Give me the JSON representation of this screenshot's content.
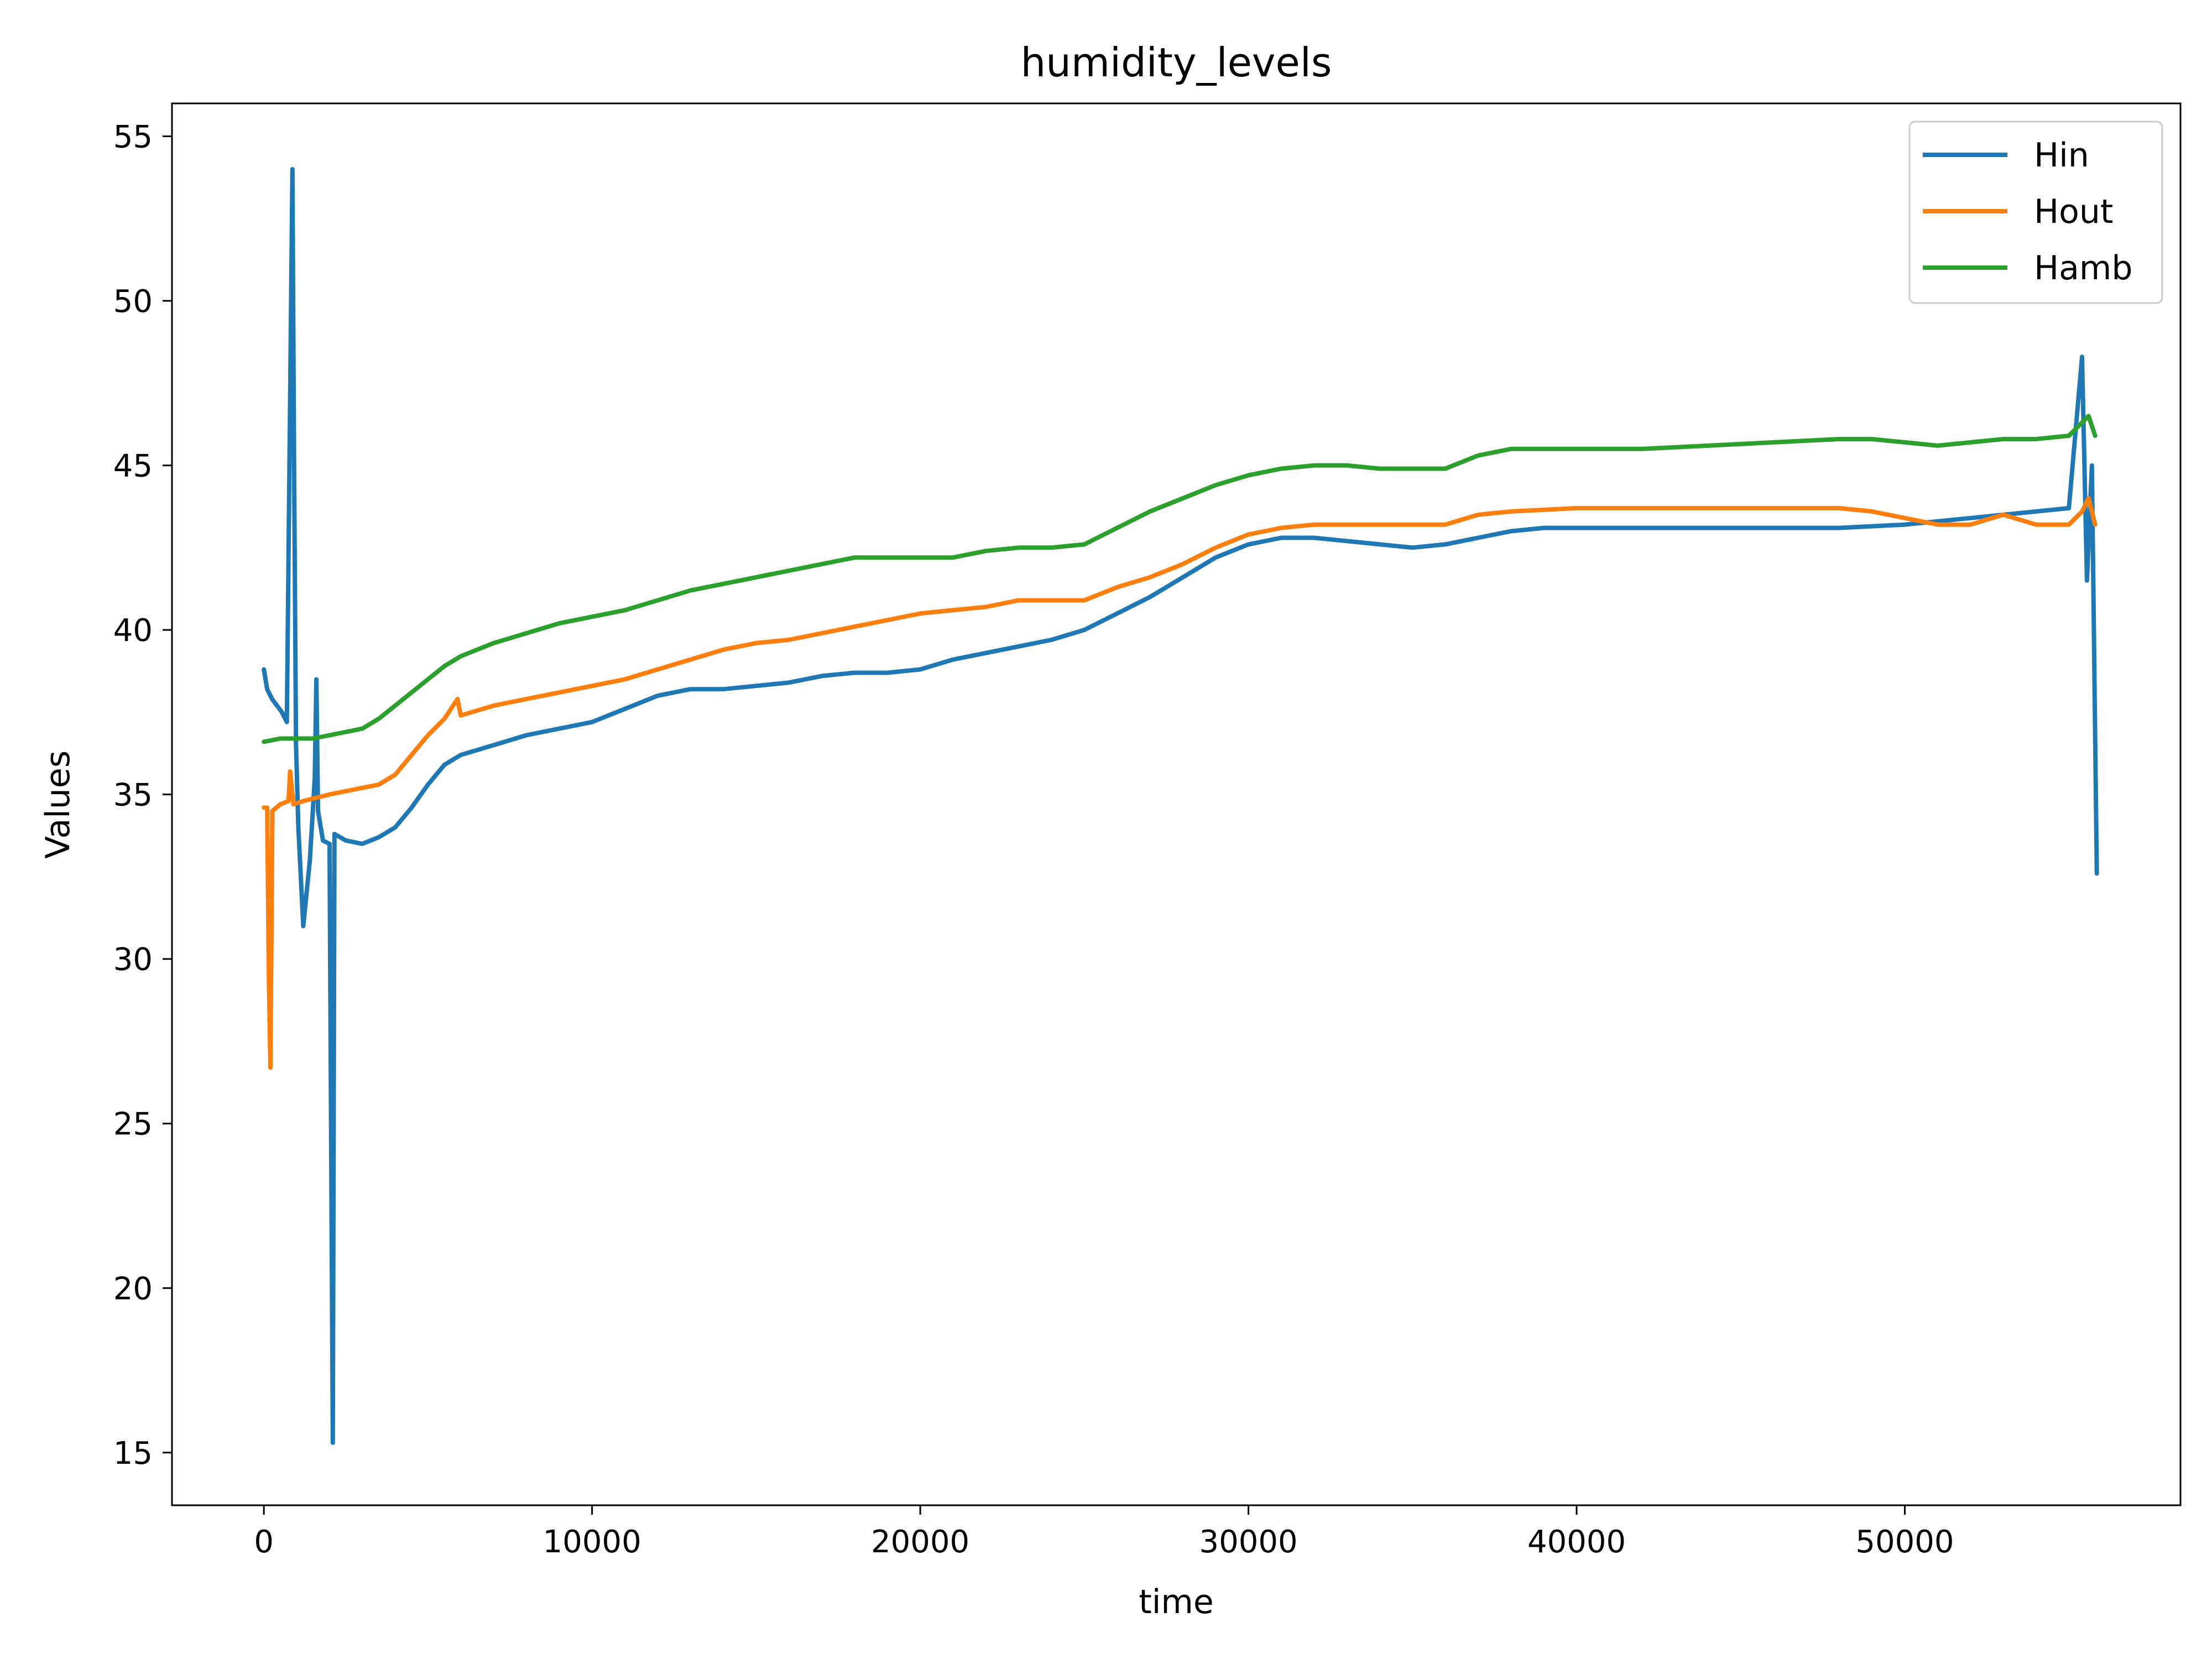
{
  "chart_data": {
    "type": "line",
    "title": "humidity_levels",
    "xlabel": "time",
    "ylabel": "Values",
    "xlim": [
      -2800,
      58400
    ],
    "ylim": [
      13.4,
      56.0
    ],
    "xticks": [
      0,
      10000,
      20000,
      30000,
      40000,
      50000
    ],
    "yticks": [
      15,
      20,
      25,
      30,
      35,
      40,
      45,
      50,
      55
    ],
    "grid": false,
    "legend": {
      "position": "top-right",
      "entries": [
        "Hin",
        "Hout",
        "Hamb"
      ]
    },
    "series": [
      {
        "name": "Hin",
        "color": "#1f77b4",
        "points": [
          [
            0,
            38.8
          ],
          [
            100,
            38.2
          ],
          [
            250,
            37.9
          ],
          [
            400,
            37.7
          ],
          [
            550,
            37.5
          ],
          [
            700,
            37.2
          ],
          [
            800,
            47.0
          ],
          [
            870,
            54.0
          ],
          [
            920,
            45.0
          ],
          [
            980,
            36.5
          ],
          [
            1050,
            34.0
          ],
          [
            1200,
            31.0
          ],
          [
            1400,
            33.0
          ],
          [
            1550,
            35.5
          ],
          [
            1600,
            38.5
          ],
          [
            1650,
            34.5
          ],
          [
            1800,
            33.6
          ],
          [
            2000,
            33.5
          ],
          [
            2100,
            15.3
          ],
          [
            2150,
            33.8
          ],
          [
            2500,
            33.6
          ],
          [
            3000,
            33.5
          ],
          [
            3500,
            33.7
          ],
          [
            4000,
            34.0
          ],
          [
            4500,
            34.6
          ],
          [
            5000,
            35.3
          ],
          [
            5500,
            35.9
          ],
          [
            6000,
            36.2
          ],
          [
            7000,
            36.5
          ],
          [
            8000,
            36.8
          ],
          [
            9000,
            37.0
          ],
          [
            10000,
            37.2
          ],
          [
            11000,
            37.6
          ],
          [
            12000,
            38.0
          ],
          [
            13000,
            38.2
          ],
          [
            14000,
            38.2
          ],
          [
            15000,
            38.3
          ],
          [
            16000,
            38.4
          ],
          [
            17000,
            38.6
          ],
          [
            18000,
            38.7
          ],
          [
            19000,
            38.7
          ],
          [
            20000,
            38.8
          ],
          [
            21000,
            39.1
          ],
          [
            22000,
            39.3
          ],
          [
            23000,
            39.5
          ],
          [
            24000,
            39.7
          ],
          [
            25000,
            40.0
          ],
          [
            26000,
            40.5
          ],
          [
            27000,
            41.0
          ],
          [
            28000,
            41.6
          ],
          [
            29000,
            42.2
          ],
          [
            30000,
            42.6
          ],
          [
            31000,
            42.8
          ],
          [
            32000,
            42.8
          ],
          [
            33000,
            42.7
          ],
          [
            34000,
            42.6
          ],
          [
            35000,
            42.5
          ],
          [
            36000,
            42.6
          ],
          [
            37000,
            42.8
          ],
          [
            38000,
            43.0
          ],
          [
            39000,
            43.1
          ],
          [
            40000,
            43.1
          ],
          [
            42000,
            43.1
          ],
          [
            44000,
            43.1
          ],
          [
            46000,
            43.1
          ],
          [
            48000,
            43.1
          ],
          [
            50000,
            43.2
          ],
          [
            51000,
            43.3
          ],
          [
            52000,
            43.4
          ],
          [
            53000,
            43.5
          ],
          [
            54000,
            43.6
          ],
          [
            55000,
            43.7
          ],
          [
            55400,
            48.3
          ],
          [
            55550,
            41.5
          ],
          [
            55700,
            45.0
          ],
          [
            55850,
            32.6
          ]
        ]
      },
      {
        "name": "Hout",
        "color": "#ff7f0e",
        "points": [
          [
            0,
            34.6
          ],
          [
            100,
            34.6
          ],
          [
            150,
            29.5
          ],
          [
            200,
            26.7
          ],
          [
            260,
            34.5
          ],
          [
            500,
            34.7
          ],
          [
            750,
            34.8
          ],
          [
            800,
            35.7
          ],
          [
            900,
            34.7
          ],
          [
            1200,
            34.8
          ],
          [
            1600,
            34.9
          ],
          [
            2000,
            35.0
          ],
          [
            2500,
            35.1
          ],
          [
            3000,
            35.2
          ],
          [
            3500,
            35.3
          ],
          [
            4000,
            35.6
          ],
          [
            4500,
            36.2
          ],
          [
            5000,
            36.8
          ],
          [
            5500,
            37.3
          ],
          [
            5900,
            37.9
          ],
          [
            6000,
            37.4
          ],
          [
            7000,
            37.7
          ],
          [
            8000,
            37.9
          ],
          [
            9000,
            38.1
          ],
          [
            10000,
            38.3
          ],
          [
            11000,
            38.5
          ],
          [
            12000,
            38.8
          ],
          [
            13000,
            39.1
          ],
          [
            14000,
            39.4
          ],
          [
            15000,
            39.6
          ],
          [
            16000,
            39.7
          ],
          [
            17000,
            39.9
          ],
          [
            18000,
            40.1
          ],
          [
            19000,
            40.3
          ],
          [
            20000,
            40.5
          ],
          [
            21000,
            40.6
          ],
          [
            22000,
            40.7
          ],
          [
            23000,
            40.9
          ],
          [
            24000,
            40.9
          ],
          [
            25000,
            40.9
          ],
          [
            26000,
            41.3
          ],
          [
            27000,
            41.6
          ],
          [
            28000,
            42.0
          ],
          [
            29000,
            42.5
          ],
          [
            30000,
            42.9
          ],
          [
            31000,
            43.1
          ],
          [
            32000,
            43.2
          ],
          [
            33000,
            43.2
          ],
          [
            34000,
            43.2
          ],
          [
            35000,
            43.2
          ],
          [
            36000,
            43.2
          ],
          [
            37000,
            43.5
          ],
          [
            38000,
            43.6
          ],
          [
            40000,
            43.7
          ],
          [
            42000,
            43.7
          ],
          [
            44000,
            43.7
          ],
          [
            46000,
            43.7
          ],
          [
            48000,
            43.7
          ],
          [
            49000,
            43.6
          ],
          [
            50000,
            43.4
          ],
          [
            51000,
            43.2
          ],
          [
            52000,
            43.2
          ],
          [
            53000,
            43.5
          ],
          [
            54000,
            43.2
          ],
          [
            55000,
            43.2
          ],
          [
            55400,
            43.6
          ],
          [
            55600,
            44.0
          ],
          [
            55800,
            43.2
          ]
        ]
      },
      {
        "name": "Hamb",
        "color": "#2ca02c",
        "points": [
          [
            0,
            36.6
          ],
          [
            500,
            36.7
          ],
          [
            1000,
            36.7
          ],
          [
            1500,
            36.7
          ],
          [
            2000,
            36.8
          ],
          [
            2500,
            36.9
          ],
          [
            3000,
            37.0
          ],
          [
            3500,
            37.3
          ],
          [
            4000,
            37.7
          ],
          [
            4500,
            38.1
          ],
          [
            5000,
            38.5
          ],
          [
            5500,
            38.9
          ],
          [
            6000,
            39.2
          ],
          [
            7000,
            39.6
          ],
          [
            8000,
            39.9
          ],
          [
            9000,
            40.2
          ],
          [
            10000,
            40.4
          ],
          [
            11000,
            40.6
          ],
          [
            12000,
            40.9
          ],
          [
            13000,
            41.2
          ],
          [
            14000,
            41.4
          ],
          [
            15000,
            41.6
          ],
          [
            16000,
            41.8
          ],
          [
            17000,
            42.0
          ],
          [
            18000,
            42.2
          ],
          [
            19000,
            42.2
          ],
          [
            20000,
            42.2
          ],
          [
            21000,
            42.2
          ],
          [
            22000,
            42.4
          ],
          [
            23000,
            42.5
          ],
          [
            24000,
            42.5
          ],
          [
            25000,
            42.6
          ],
          [
            26000,
            43.1
          ],
          [
            27000,
            43.6
          ],
          [
            28000,
            44.0
          ],
          [
            29000,
            44.4
          ],
          [
            30000,
            44.7
          ],
          [
            31000,
            44.9
          ],
          [
            32000,
            45.0
          ],
          [
            33000,
            45.0
          ],
          [
            34000,
            44.9
          ],
          [
            35000,
            44.9
          ],
          [
            36000,
            44.9
          ],
          [
            37000,
            45.3
          ],
          [
            38000,
            45.5
          ],
          [
            39000,
            45.5
          ],
          [
            40000,
            45.5
          ],
          [
            42000,
            45.5
          ],
          [
            44000,
            45.6
          ],
          [
            46000,
            45.7
          ],
          [
            48000,
            45.8
          ],
          [
            49000,
            45.8
          ],
          [
            50000,
            45.7
          ],
          [
            51000,
            45.6
          ],
          [
            52000,
            45.7
          ],
          [
            53000,
            45.8
          ],
          [
            54000,
            45.8
          ],
          [
            55000,
            45.9
          ],
          [
            55600,
            46.5
          ],
          [
            55800,
            45.9
          ]
        ]
      }
    ]
  }
}
